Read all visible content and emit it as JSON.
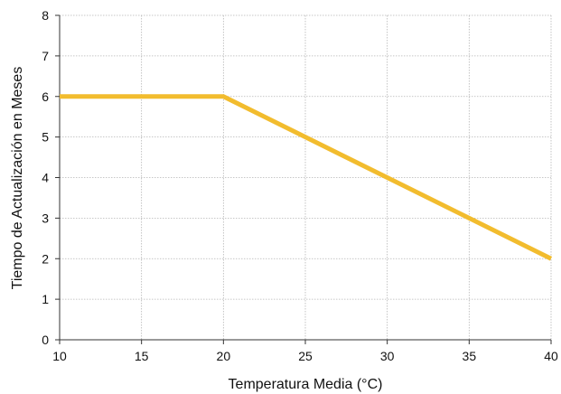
{
  "chart_data": {
    "type": "line",
    "xlabel": "Temperatura Media (°C)",
    "ylabel": "Tiempo de Actualización en Meses",
    "xlim": [
      10,
      40
    ],
    "ylim": [
      0,
      8
    ],
    "x_ticks": [
      10,
      15,
      20,
      25,
      30,
      35,
      40
    ],
    "y_ticks": [
      0,
      1,
      2,
      3,
      4,
      5,
      6,
      7,
      8
    ],
    "grid": true,
    "grid_style": "dotted",
    "series": [
      {
        "color": "#F2BC2E",
        "points": [
          {
            "x": 10,
            "y": 6
          },
          {
            "x": 20,
            "y": 6
          },
          {
            "x": 25,
            "y": 5
          },
          {
            "x": 30,
            "y": 4
          },
          {
            "x": 35,
            "y": 3
          },
          {
            "x": 40,
            "y": 2
          }
        ]
      }
    ]
  }
}
